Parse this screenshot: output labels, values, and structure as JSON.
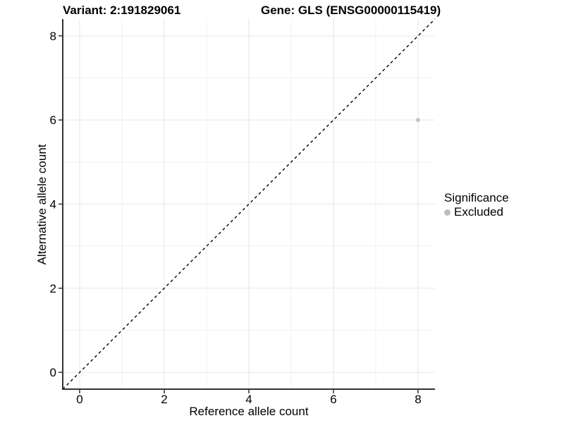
{
  "chart_data": {
    "type": "scatter",
    "titles": {
      "left": "Variant: 2:191829061",
      "right": "Gene: GLS (ENSG00000115419)"
    },
    "xlabel": "Reference allele count",
    "ylabel": "Alternative allele count",
    "xlim": [
      -0.4,
      8.4
    ],
    "ylim": [
      -0.4,
      8.4
    ],
    "x_ticks": [
      0,
      2,
      4,
      6,
      8
    ],
    "y_ticks": [
      0,
      2,
      4,
      6,
      8
    ],
    "x_minor_ticks": [
      1,
      3,
      5,
      7
    ],
    "y_minor_ticks": [
      1,
      3,
      5,
      7
    ],
    "grid": "major and minor gridlines on white background",
    "identity_line": {
      "slope": 1,
      "intercept": 0,
      "style": "dashed",
      "color": "#000000"
    },
    "series": [
      {
        "name": "Excluded",
        "color": "#bebebe",
        "point_radius": 2.8,
        "points": [
          {
            "x": 8,
            "y": 6
          }
        ]
      }
    ],
    "legend": {
      "title": "Significance",
      "position": "right",
      "items": [
        {
          "label": "Excluded",
          "color": "#bebebe",
          "marker": "circle-icon"
        }
      ]
    },
    "colors": {
      "background": "#ffffff",
      "grid_major": "#e6e6e6",
      "grid_minor": "#f2f2f2",
      "axis_line": "#333333",
      "tick_text": "#000000"
    },
    "tick_font_px": 17
  }
}
